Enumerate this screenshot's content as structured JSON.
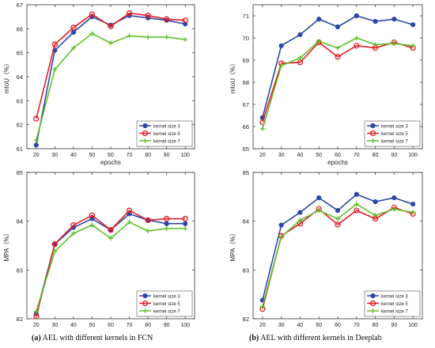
{
  "colors": {
    "kernel3": "#2c47a8",
    "kernel5": "#e21d24",
    "kernel7": "#5ec02b",
    "axis": "#333333",
    "grid": "#e6e6e6"
  },
  "legend_labels": [
    "kernel size 3",
    "kernel size 5",
    "kernel size 7"
  ],
  "captions": {
    "left_tag": "(a)",
    "left_text": "AEL with different kernels in FCN",
    "right_tag": "(b)",
    "right_text": "AEL with different kernels in Deeplab"
  },
  "chart_data": [
    {
      "type": "line",
      "panel": "a-top",
      "x": [
        20,
        30,
        40,
        50,
        60,
        70,
        80,
        90,
        100
      ],
      "xlabel": "epochs",
      "ylabel": "mIoU（%）",
      "ylim": [
        61,
        67
      ],
      "yticks": [
        61,
        62,
        63,
        64,
        65,
        66,
        67
      ],
      "legend": "bottom-right",
      "series": [
        {
          "name": "kernel size 3",
          "values": [
            61.15,
            65.1,
            65.85,
            66.5,
            66.15,
            66.55,
            66.45,
            66.35,
            66.2
          ]
        },
        {
          "name": "kernel size 5",
          "values": [
            62.25,
            65.35,
            66.05,
            66.6,
            66.1,
            66.65,
            66.55,
            66.4,
            66.35
          ]
        },
        {
          "name": "kernel size 7",
          "values": [
            61.35,
            64.3,
            65.2,
            65.8,
            65.4,
            65.7,
            65.65,
            65.65,
            65.55
          ]
        }
      ]
    },
    {
      "type": "line",
      "panel": "b-top",
      "x": [
        20,
        30,
        40,
        50,
        60,
        70,
        80,
        90,
        100
      ],
      "xlabel": "epochs",
      "ylabel": "mIoU（%）",
      "ylim": [
        65,
        71.5
      ],
      "yticks": [
        65,
        66,
        67,
        68,
        69,
        70,
        71
      ],
      "legend": "bottom-right",
      "series": [
        {
          "name": "kernel size 3",
          "values": [
            66.4,
            69.65,
            70.15,
            70.85,
            70.5,
            71.0,
            70.75,
            70.85,
            70.6
          ]
        },
        {
          "name": "kernel size 5",
          "values": [
            66.2,
            68.85,
            68.9,
            69.8,
            69.15,
            69.65,
            69.55,
            69.8,
            69.55
          ]
        },
        {
          "name": "kernel size 7",
          "values": [
            65.9,
            68.75,
            69.1,
            69.85,
            69.55,
            70.0,
            69.7,
            69.75,
            69.65
          ]
        }
      ]
    },
    {
      "type": "line",
      "panel": "a-bottom",
      "x": [
        20,
        30,
        40,
        50,
        60,
        70,
        80,
        90,
        100
      ],
      "xlabel": "",
      "ylabel": "MPA（%）",
      "ylim": [
        82,
        85
      ],
      "yticks": [
        82,
        83,
        84,
        85
      ],
      "legend": "bottom-right",
      "series": [
        {
          "name": "kernel size 3",
          "values": [
            82.1,
            83.53,
            83.87,
            84.05,
            83.82,
            84.15,
            84.02,
            83.95,
            83.95
          ]
        },
        {
          "name": "kernel size 5",
          "values": [
            82.05,
            83.53,
            83.92,
            84.12,
            83.82,
            84.22,
            84.02,
            84.05,
            84.05
          ]
        },
        {
          "name": "kernel size 7",
          "values": [
            82.15,
            83.38,
            83.75,
            83.92,
            83.65,
            83.98,
            83.8,
            83.85,
            83.85
          ]
        }
      ]
    },
    {
      "type": "line",
      "panel": "b-bottom",
      "x": [
        20,
        30,
        40,
        50,
        60,
        70,
        80,
        90,
        100
      ],
      "xlabel": "",
      "ylabel": "MPA（%）",
      "ylim": [
        82,
        85
      ],
      "yticks": [
        82,
        83,
        84,
        85
      ],
      "legend": "bottom-right",
      "series": [
        {
          "name": "kernel size 3",
          "values": [
            82.38,
            83.92,
            84.18,
            84.48,
            84.22,
            84.55,
            84.4,
            84.48,
            84.35
          ]
        },
        {
          "name": "kernel size 5",
          "values": [
            82.2,
            83.7,
            83.95,
            84.25,
            83.93,
            84.22,
            84.05,
            84.28,
            84.15
          ]
        },
        {
          "name": "kernel size 7",
          "values": [
            82.25,
            83.68,
            84.02,
            84.22,
            84.05,
            84.35,
            84.12,
            84.25,
            84.18
          ]
        }
      ]
    }
  ]
}
